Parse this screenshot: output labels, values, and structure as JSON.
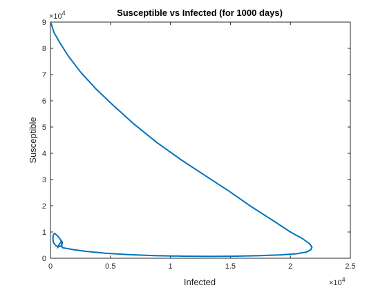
{
  "chart_data": {
    "type": "line",
    "title": "Susceptible vs Infected (for 1000 days)",
    "xlabel": "Infected",
    "ylabel": "Susceptible",
    "xlim": [
      0,
      25
    ],
    "ylim": [
      0,
      9
    ],
    "x_exponent": {
      "base": "×10",
      "power": "4"
    },
    "y_exponent": {
      "base": "×10",
      "power": "4"
    },
    "x_ticks": [
      "0",
      "0.5",
      "1",
      "1.5",
      "2",
      "2.5"
    ],
    "x_tick_values": [
      0,
      5,
      10,
      15,
      20,
      25
    ],
    "y_ticks": [
      "0",
      "1",
      "2",
      "3",
      "4",
      "5",
      "6",
      "7",
      "8",
      "9"
    ],
    "y_tick_values": [
      0,
      1,
      2,
      3,
      4,
      5,
      6,
      7,
      8,
      9
    ],
    "grid": false,
    "line_color": "#0072BD",
    "series": [
      {
        "x": [
          0.05,
          0.3,
          0.8,
          1.5,
          2.5,
          3.8,
          5.3,
          7.0,
          8.9,
          10.9,
          12.9,
          14.9,
          16.8,
          18.5,
          20.0,
          21.0,
          21.6,
          21.8,
          21.7,
          21.3,
          20.5,
          19.2,
          17.5,
          15.5,
          13.3,
          11.0,
          8.7,
          6.5,
          4.6,
          3.0,
          1.9,
          1.3,
          1.0,
          0.95,
          0.95,
          0.85,
          0.6,
          0.35,
          0.25,
          0.2,
          0.25,
          0.45,
          0.7,
          0.9,
          1.0,
          0.95,
          0.75,
          0.6
        ],
        "y": [
          8.95,
          8.6,
          8.2,
          7.7,
          7.1,
          6.45,
          5.8,
          5.1,
          4.4,
          3.75,
          3.15,
          2.55,
          1.95,
          1.45,
          1.0,
          0.75,
          0.55,
          0.42,
          0.32,
          0.23,
          0.17,
          0.13,
          0.1,
          0.08,
          0.07,
          0.08,
          0.1,
          0.14,
          0.19,
          0.26,
          0.33,
          0.38,
          0.4,
          0.45,
          0.55,
          0.7,
          0.85,
          0.95,
          0.9,
          0.75,
          0.6,
          0.48,
          0.44,
          0.48,
          0.58,
          0.65,
          0.55,
          0.4
        ]
      }
    ]
  }
}
